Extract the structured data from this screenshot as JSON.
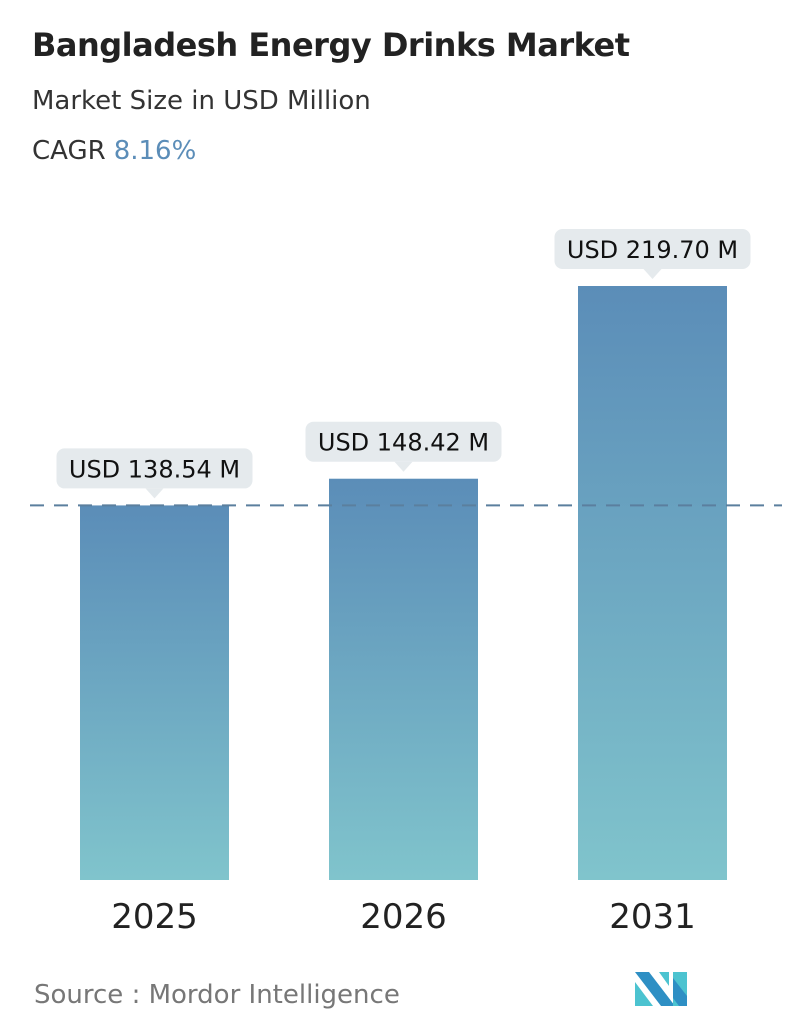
{
  "title": "Bangladesh Energy Drinks Market",
  "subtitle": "Market Size in USD Million",
  "cagr": {
    "label": "CAGR",
    "value": "8.16%"
  },
  "source": {
    "label": "Source :",
    "value": "Mordor Intelligence"
  },
  "colors": {
    "bar_top": "#5b8db8",
    "bar_bottom": "#80c4cc",
    "accent": "#5b8db8",
    "tooltip_bg": "#e5eaed"
  },
  "chart_data": {
    "type": "bar",
    "categories": [
      "2025",
      "2026",
      "2031"
    ],
    "values": [
      138.54,
      148.42,
      219.7
    ],
    "data_labels": [
      "USD 138.54 M",
      "USD 148.42 M",
      "USD 219.70 M"
    ],
    "reference_line": {
      "value": 138.54,
      "style": "dashed"
    },
    "ylim": [
      0,
      219.7
    ],
    "grid": false
  }
}
